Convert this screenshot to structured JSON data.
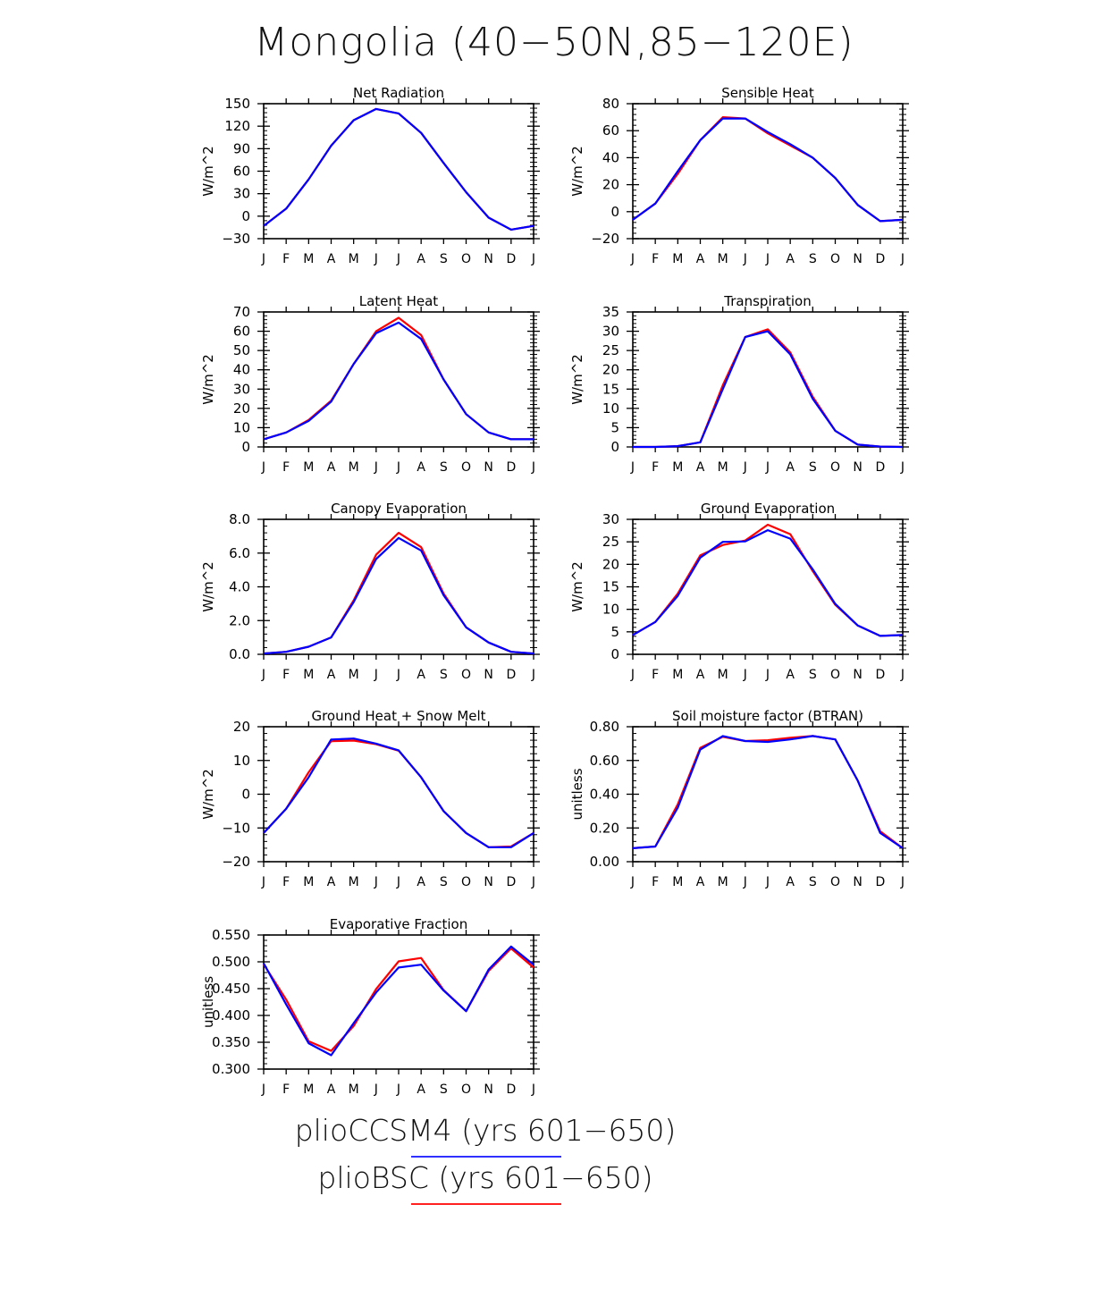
{
  "title": "Mongolia (40−50N,85−120E)",
  "legend": [
    {
      "label": "plioCCSM4 (yrs 601−650)",
      "color": "#3030ff"
    },
    {
      "label": "plioBSC (yrs 601−650)",
      "color": "#ff2020"
    }
  ],
  "chart_data": [
    {
      "type": "line",
      "title": "Net Radiation",
      "ylabel": "W/m^2",
      "x": [
        "J",
        "F",
        "M",
        "A",
        "M",
        "J",
        "J",
        "A",
        "S",
        "O",
        "N",
        "D",
        "J"
      ],
      "ylim": [
        -30,
        150
      ],
      "yticks": [
        "−30",
        "0",
        "30",
        "60",
        "90",
        "120",
        "150"
      ],
      "series": [
        {
          "color": "#ff0000",
          "values": [
            -13,
            10,
            49,
            94,
            128,
            143,
            137,
            111,
            71,
            32,
            -2,
            -18,
            -13
          ]
        },
        {
          "color": "#0000ff",
          "values": [
            -13,
            10,
            49,
            94,
            128,
            143,
            137,
            111,
            71,
            32,
            -2,
            -18,
            -13
          ]
        }
      ]
    },
    {
      "type": "line",
      "title": "Sensible Heat",
      "ylabel": "W/m^2",
      "x": [
        "J",
        "F",
        "M",
        "A",
        "M",
        "J",
        "J",
        "A",
        "S",
        "O",
        "N",
        "D",
        "J"
      ],
      "ylim": [
        -20,
        80
      ],
      "yticks": [
        "−20",
        "0",
        "20",
        "40",
        "60",
        "80"
      ],
      "series": [
        {
          "color": "#ff0000",
          "values": [
            -6,
            6,
            28,
            53,
            70,
            69,
            58,
            49,
            40,
            25,
            5,
            -7,
            -6
          ]
        },
        {
          "color": "#0000ff",
          "values": [
            -6,
            6,
            30,
            53,
            69,
            69,
            59,
            50,
            40,
            25,
            5,
            -7,
            -6
          ]
        }
      ]
    },
    {
      "type": "line",
      "title": "Latent Heat",
      "ylabel": "W/m^2",
      "x": [
        "J",
        "F",
        "M",
        "A",
        "M",
        "J",
        "J",
        "A",
        "S",
        "O",
        "N",
        "D",
        "J"
      ],
      "ylim": [
        0,
        70
      ],
      "yticks": [
        "0",
        "10",
        "20",
        "30",
        "40",
        "50",
        "60",
        "70"
      ],
      "series": [
        {
          "color": "#ff0000",
          "values": [
            4,
            7.5,
            14,
            24,
            43,
            60,
            67,
            58,
            35,
            17,
            7.5,
            4,
            4
          ]
        },
        {
          "color": "#0000ff",
          "values": [
            4,
            7.5,
            13.5,
            23.5,
            43,
            59,
            64.5,
            56,
            35,
            17,
            7.5,
            4,
            4
          ]
        }
      ]
    },
    {
      "type": "line",
      "title": "Transpiration",
      "ylabel": "W/m^2",
      "x": [
        "J",
        "F",
        "M",
        "A",
        "M",
        "J",
        "J",
        "A",
        "S",
        "O",
        "N",
        "D",
        "J"
      ],
      "ylim": [
        0,
        35
      ],
      "yticks": [
        "0",
        "5",
        "10",
        "15",
        "20",
        "25",
        "30",
        "35"
      ],
      "series": [
        {
          "color": "#ff0000",
          "values": [
            0,
            0,
            0.2,
            1.2,
            16,
            28.5,
            30.5,
            24.5,
            13,
            4.2,
            0.6,
            0.1,
            0
          ]
        },
        {
          "color": "#0000ff",
          "values": [
            0,
            0,
            0.2,
            1.2,
            15,
            28.5,
            30,
            24,
            12.5,
            4.2,
            0.6,
            0.1,
            0
          ]
        }
      ]
    },
    {
      "type": "line",
      "title": "Canopy Evaporation",
      "ylabel": "W/m^2",
      "x": [
        "J",
        "F",
        "M",
        "A",
        "M",
        "J",
        "J",
        "A",
        "S",
        "O",
        "N",
        "D",
        "J"
      ],
      "ylim": [
        0,
        8
      ],
      "yticks": [
        "0.0",
        "2.0",
        "4.0",
        "6.0",
        "8.0"
      ],
      "series": [
        {
          "color": "#ff0000",
          "values": [
            0.05,
            0.15,
            0.45,
            1.0,
            3.2,
            5.9,
            7.2,
            6.35,
            3.6,
            1.6,
            0.7,
            0.15,
            0.05
          ]
        },
        {
          "color": "#0000ff",
          "values": [
            0.05,
            0.15,
            0.45,
            1.0,
            3.1,
            5.65,
            6.9,
            6.15,
            3.5,
            1.6,
            0.7,
            0.15,
            0.05
          ]
        }
      ]
    },
    {
      "type": "line",
      "title": "Ground Evaporation",
      "ylabel": "W/m^2",
      "x": [
        "J",
        "F",
        "M",
        "A",
        "M",
        "J",
        "J",
        "A",
        "S",
        "O",
        "N",
        "D",
        "J"
      ],
      "ylim": [
        0,
        30
      ],
      "yticks": [
        "0",
        "5",
        "10",
        "15",
        "20",
        "25",
        "30"
      ],
      "series": [
        {
          "color": "#ff0000",
          "values": [
            4.3,
            7.2,
            13.5,
            22,
            24.3,
            25.3,
            28.8,
            26.7,
            18.5,
            11,
            6.4,
            4.1,
            4.3
          ]
        },
        {
          "color": "#0000ff",
          "values": [
            4.3,
            7.2,
            13,
            21.5,
            25,
            25.1,
            27.6,
            25.7,
            18.9,
            11.2,
            6.4,
            4.1,
            4.3
          ]
        }
      ]
    },
    {
      "type": "line",
      "title": "Ground Heat + Snow Melt",
      "ylabel": "W/m^2",
      "x": [
        "J",
        "F",
        "M",
        "A",
        "M",
        "J",
        "J",
        "A",
        "S",
        "O",
        "N",
        "D",
        "J"
      ],
      "ylim": [
        -20,
        20
      ],
      "yticks": [
        "−20",
        "−10",
        "0",
        "10",
        "20"
      ],
      "series": [
        {
          "color": "#ff0000",
          "values": [
            -11.5,
            -4.3,
            6.5,
            15.7,
            15.9,
            14.8,
            12.9,
            5,
            -5,
            -11.5,
            -15.7,
            -15.5,
            -11.5
          ]
        },
        {
          "color": "#0000ff",
          "values": [
            -11.5,
            -4.3,
            5,
            16.2,
            16.5,
            15,
            13,
            5,
            -5,
            -11.5,
            -15.7,
            -15.7,
            -11.5
          ]
        }
      ]
    },
    {
      "type": "line",
      "title": "Soil moisture factor (BTRAN)",
      "ylabel": "unitless",
      "x": [
        "J",
        "F",
        "M",
        "A",
        "M",
        "J",
        "J",
        "A",
        "S",
        "O",
        "N",
        "D",
        "J"
      ],
      "ylim": [
        0,
        0.8
      ],
      "yticks": [
        "0.00",
        "0.20",
        "0.40",
        "0.60",
        "0.80"
      ],
      "series": [
        {
          "color": "#ff0000",
          "values": [
            0.08,
            0.09,
            0.34,
            0.675,
            0.74,
            0.715,
            0.72,
            0.735,
            0.745,
            0.725,
            0.48,
            0.18,
            0.08
          ]
        },
        {
          "color": "#0000ff",
          "values": [
            0.08,
            0.09,
            0.32,
            0.665,
            0.745,
            0.715,
            0.71,
            0.725,
            0.745,
            0.725,
            0.48,
            0.17,
            0.08
          ]
        }
      ]
    },
    {
      "type": "line",
      "title": "Evaporative Fraction",
      "ylabel": "unitless",
      "x": [
        "J",
        "F",
        "M",
        "A",
        "M",
        "J",
        "J",
        "A",
        "S",
        "O",
        "N",
        "D",
        "J"
      ],
      "ylim": [
        0.28,
        0.56
      ],
      "yticks": [
        "0.300",
        "0.350",
        "0.400",
        "0.450",
        "0.500",
        "0.550"
      ],
      "series": [
        {
          "color": "#ff0000",
          "values": [
            0.499,
            0.425,
            0.338,
            0.318,
            0.37,
            0.447,
            0.505,
            0.512,
            0.445,
            0.401,
            0.485,
            0.532,
            0.492
          ]
        },
        {
          "color": "#0000ff",
          "values": [
            0.501,
            0.415,
            0.334,
            0.309,
            0.376,
            0.44,
            0.492,
            0.498,
            0.444,
            0.401,
            0.488,
            0.536,
            0.498
          ]
        }
      ]
    }
  ]
}
